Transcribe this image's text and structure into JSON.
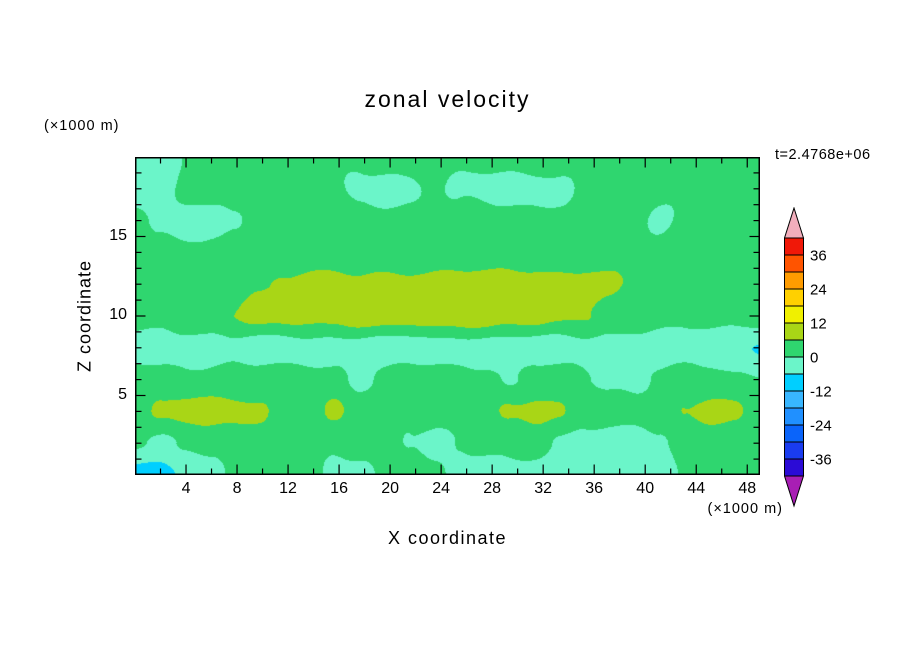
{
  "title": "zonal velocity",
  "annotations": {
    "time_label": "t=2.4768e+06",
    "y_unit_label": "(×1000 m)",
    "x_unit_label": "(×1000 m)"
  },
  "axes": {
    "x": {
      "label": "X coordinate",
      "min": 0,
      "max": 49,
      "labeled_ticks": [
        4,
        8,
        12,
        16,
        20,
        24,
        28,
        32,
        36,
        40,
        44,
        48
      ],
      "minor_step": 2
    },
    "z": {
      "label": "Z coordinate",
      "min": 0,
      "max": 20,
      "labeled_ticks": [
        5,
        10,
        15
      ],
      "minor_step": 1
    }
  },
  "colorbar": {
    "levels_min": -42,
    "levels_max": 42,
    "step": 6,
    "colors": [
      "#2B0BD6",
      "#1A3CF0",
      "#0A64FA",
      "#2090FF",
      "#38B6FF",
      "#00CFFF",
      "#6BF5C9",
      "#2FD66F",
      "#A9D616",
      "#F0F000",
      "#FFD000",
      "#FF9C00",
      "#FF5400",
      "#F01808"
    ],
    "under_color": "#A81EB4",
    "over_color": "#F2AEBC",
    "labels": [
      "36",
      "24",
      "12",
      "0",
      "-12",
      "-24",
      "-36"
    ]
  },
  "chart_data": {
    "type": "heatmap",
    "title": "zonal velocity",
    "xlabel": "X coordinate",
    "ylabel": "Z coordinate",
    "x_units": "×1000 m",
    "z_units": "×1000 m",
    "time_annotation": "t=2.4768e+06",
    "x_range": [
      0,
      49
    ],
    "z_range": [
      0,
      20
    ],
    "contour_interval": 6,
    "color_levels": [
      -42,
      -36,
      -30,
      -24,
      -18,
      -12,
      -6,
      0,
      6,
      12,
      18,
      24,
      30,
      36,
      42
    ],
    "rows_top_to_bottom_z": [
      20,
      18,
      16,
      14,
      12,
      10,
      8,
      6,
      4,
      2,
      0
    ],
    "values": [
      [
        -2,
        -2,
        1,
        2,
        2,
        2,
        2,
        2,
        2,
        2,
        2,
        2,
        2,
        2,
        2,
        2,
        2,
        2,
        2,
        2,
        2,
        2,
        2,
        2,
        2,
        2
      ],
      [
        -3,
        -2,
        1,
        2,
        2,
        2,
        2,
        2,
        1,
        -2,
        -2,
        -1,
        1,
        -1,
        -2,
        -2,
        -2,
        -1,
        1,
        2,
        2,
        2,
        2,
        2,
        2,
        2
      ],
      [
        2,
        -1,
        -3,
        -2,
        -1,
        2,
        2,
        2,
        2,
        2,
        2,
        2,
        2,
        2,
        2,
        2,
        2,
        2,
        2,
        2,
        1,
        -1,
        1,
        2,
        2,
        2
      ],
      [
        2,
        2,
        2,
        2,
        2,
        2,
        2,
        2,
        2,
        2,
        2,
        2,
        2,
        2,
        2,
        2,
        2,
        2,
        2,
        2,
        2,
        2,
        2,
        2,
        2,
        2
      ],
      [
        2,
        2,
        2,
        3,
        4,
        5,
        7,
        8,
        7,
        7,
        8,
        8,
        8,
        8,
        8,
        9,
        9,
        8,
        8,
        7,
        5,
        4,
        3,
        2,
        2,
        2
      ],
      [
        2,
        2,
        3,
        4,
        6,
        8,
        8,
        7,
        8,
        9,
        9,
        8,
        9,
        9,
        9,
        8,
        8,
        7,
        6,
        4,
        3,
        2,
        2,
        2,
        2,
        2
      ],
      [
        -2,
        -3,
        -3,
        -3,
        -2,
        -3,
        -3,
        -2,
        -3,
        -3,
        -3,
        -3,
        -2,
        -3,
        -3,
        -3,
        -3,
        -3,
        -2,
        -3,
        -3,
        -3,
        -3,
        -4,
        -6,
        -7
      ],
      [
        2,
        2,
        2,
        2,
        2,
        2,
        2,
        2,
        2,
        -1,
        1,
        2,
        2,
        2,
        2,
        -1,
        2,
        2,
        1,
        -1,
        -1,
        1,
        2,
        2,
        1,
        1
      ],
      [
        3,
        7,
        8,
        8,
        8,
        7,
        4,
        2,
        7,
        3,
        2,
        2,
        2,
        2,
        3,
        7,
        8,
        7,
        3,
        2,
        2,
        2,
        7,
        8,
        7,
        3
      ],
      [
        0,
        -1,
        1,
        3,
        3,
        3,
        2,
        2,
        2,
        2,
        2,
        -1,
        -2,
        1,
        2,
        2,
        2,
        -1,
        -2,
        -2,
        -2,
        -1,
        2,
        2,
        2,
        2
      ],
      [
        -8,
        -8,
        -6,
        -3,
        1,
        2,
        2,
        2,
        -2,
        -2,
        2,
        2,
        2,
        -3,
        -3,
        -2,
        -2,
        -3,
        -3,
        -3,
        -3,
        -2,
        1,
        2,
        2,
        2
      ]
    ]
  }
}
